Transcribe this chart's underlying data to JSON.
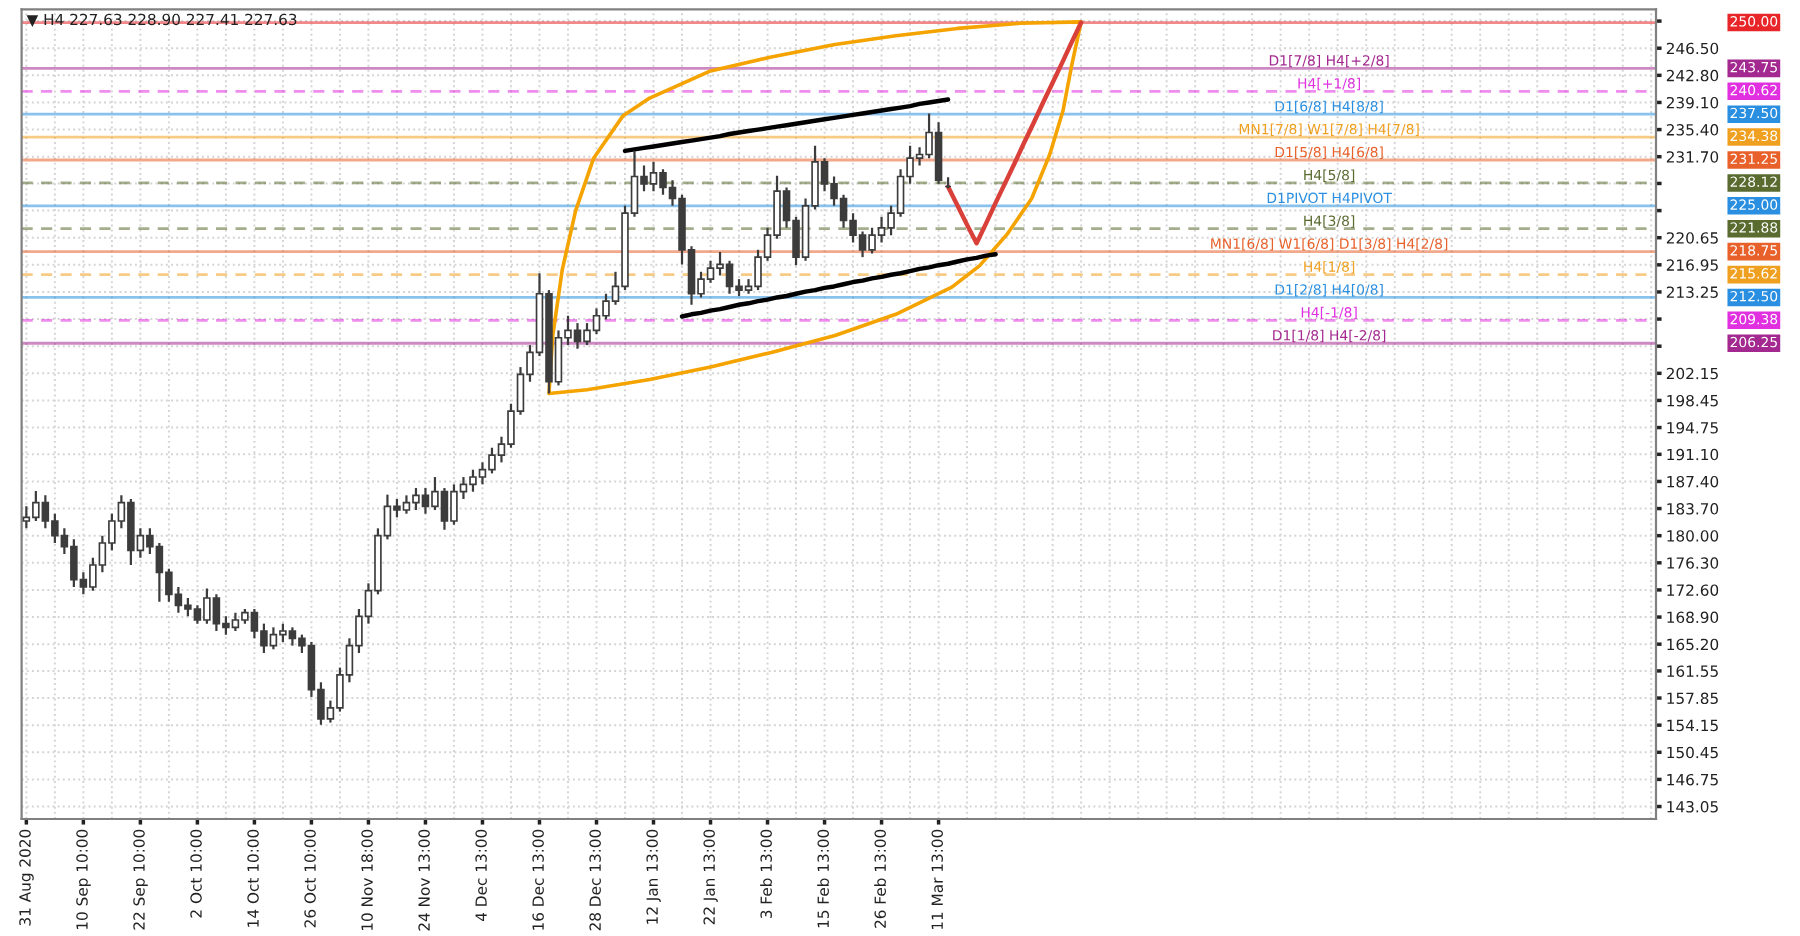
{
  "chart_data": {
    "type": "candlestick",
    "title": "▼ H4 227.63 228.90 227.41 227.63",
    "categories": [
      "31 Aug 2020",
      null,
      null,
      null,
      null,
      null,
      "10 Sep 10:00",
      null,
      null,
      null,
      null,
      null,
      "22 Sep 10:00",
      null,
      null,
      null,
      null,
      null,
      "2 Oct 10:00",
      null,
      null,
      null,
      null,
      null,
      "14 Oct 10:00",
      null,
      null,
      null,
      null,
      null,
      "26 Oct 10:00",
      null,
      null,
      null,
      null,
      null,
      "10 Nov 18:00",
      null,
      null,
      null,
      null,
      null,
      "24 Nov 13:00",
      null,
      null,
      null,
      null,
      null,
      "4 Dec 13:00",
      null,
      null,
      null,
      null,
      null,
      "16 Dec 13:00",
      null,
      null,
      null,
      null,
      null,
      "28 Dec 13:00",
      null,
      null,
      null,
      null,
      null,
      "12 Jan 13:00",
      null,
      null,
      null,
      null,
      null,
      "22 Jan 13:00",
      null,
      null,
      null,
      null,
      null,
      "3 Feb 13:00",
      null,
      null,
      null,
      null,
      null,
      "15 Feb 13:00",
      null,
      null,
      null,
      null,
      null,
      "26 Feb 13:00",
      null,
      null,
      null,
      null,
      null,
      "11 Mar 13:00",
      null,
      null,
      null,
      null,
      null,
      null,
      null,
      null,
      null,
      null,
      null,
      null,
      null,
      null,
      null,
      null,
      null,
      null,
      null,
      null,
      null,
      null,
      null,
      null,
      null,
      null,
      null,
      null,
      null,
      null,
      null,
      null,
      null,
      null,
      null,
      null,
      null,
      null,
      null,
      null,
      null,
      null,
      null,
      null,
      null,
      null,
      null,
      null,
      null,
      null,
      null,
      null,
      null,
      null,
      null,
      null,
      null,
      null,
      null,
      null,
      null,
      null,
      null,
      null,
      null,
      null,
      null,
      null,
      null,
      null,
      null,
      null,
      null,
      null,
      null
    ],
    "ylim": [
      141.35,
      251.8
    ],
    "grid": true,
    "yticks": [
      143.05,
      146.75,
      150.45,
      154.15,
      157.85,
      161.55,
      {
        "value": 165.2,
        "label": "165.20"
      },
      {
        "value": 168.9,
        "label": "168.90"
      },
      {
        "value": 172.6,
        "label": "172.60"
      },
      {
        "value": 176.3,
        "label": "176.30"
      },
      {
        "value": 180,
        "label": "180.00"
      },
      {
        "value": 183.7,
        "label": "183.70"
      },
      {
        "value": 187.4,
        "label": "187.40"
      },
      {
        "value": 191.1,
        "label": "191.10"
      },
      194.75,
      198.45,
      202.15,
      {
        "value": 205.85,
        "label": null
      },
      {
        "value": 209.55,
        "label": null
      },
      213.25,
      216.95,
      220.65,
      {
        "value": 224.35,
        "label": null
      },
      {
        "value": 228.05,
        "label": null
      },
      {
        "value": 231.7,
        "label": "231.70"
      },
      {
        "value": 235.4,
        "label": "235.40"
      },
      {
        "value": 239.1,
        "label": "239.10"
      },
      {
        "value": 242.8,
        "label": "242.80"
      },
      {
        "value": 246.5,
        "label": "246.50"
      },
      {
        "value": 250.2,
        "label": null
      }
    ],
    "series": [
      {
        "color": "#3c3c3c",
        "ohlc": [
          [
            182.0,
            184.0,
            181.0,
            182.5
          ],
          [
            182.5,
            186.1,
            182.0,
            184.5
          ],
          [
            184.5,
            185.5,
            181.0,
            182.0
          ],
          [
            182.0,
            183.0,
            179.0,
            180.0
          ],
          [
            180.0,
            181.0,
            177.5,
            178.5
          ],
          [
            178.5,
            179.5,
            173.0,
            174.0
          ],
          [
            174.0,
            175.0,
            172.0,
            173.0
          ],
          [
            173.0,
            177.0,
            172.5,
            176.0
          ],
          [
            176.0,
            180.0,
            175.0,
            179.0
          ],
          [
            179.0,
            183.0,
            178.0,
            182.0
          ],
          [
            182.0,
            185.5,
            181.0,
            184.5
          ],
          [
            184.5,
            185.0,
            176.0,
            178.0
          ],
          [
            178.0,
            181.0,
            177.0,
            180.0
          ],
          [
            180.0,
            181.0,
            177.5,
            178.5
          ],
          [
            178.5,
            179.0,
            171.0,
            175.0
          ],
          [
            175.0,
            175.5,
            171.0,
            172.0
          ],
          [
            172.0,
            173.0,
            169.5,
            170.5
          ],
          [
            170.5,
            171.5,
            169.0,
            170.0
          ],
          [
            170.0,
            170.5,
            168.0,
            168.5
          ],
          [
            168.5,
            172.8,
            168.0,
            171.5
          ],
          [
            171.5,
            172.0,
            167.0,
            168.0
          ],
          [
            168.0,
            169.0,
            166.5,
            167.5
          ],
          [
            167.5,
            169.5,
            167.0,
            168.5
          ],
          [
            168.5,
            170.0,
            168.0,
            169.5
          ],
          [
            169.5,
            170.0,
            166.0,
            167.0
          ],
          [
            167.0,
            168.0,
            164.0,
            165.0
          ],
          [
            165.0,
            167.5,
            164.5,
            166.5
          ],
          [
            166.5,
            168.0,
            165.5,
            167.0
          ],
          [
            167.0,
            167.5,
            165.0,
            166.0
          ],
          [
            166.0,
            166.5,
            164.0,
            165.0
          ],
          [
            165.0,
            165.5,
            158.0,
            159.0
          ],
          [
            159.0,
            160.0,
            154.2,
            155.0
          ],
          [
            155.0,
            157.5,
            154.5,
            156.5
          ],
          [
            156.5,
            162.0,
            156.0,
            161.0
          ],
          [
            161.0,
            166.0,
            160.0,
            165.0
          ],
          [
            165.0,
            170.0,
            164.0,
            169.0
          ],
          [
            169.0,
            173.5,
            168.0,
            172.5
          ],
          [
            172.5,
            181.0,
            172.0,
            180.0
          ],
          [
            180.0,
            185.6,
            179.5,
            184.0
          ],
          [
            184.0,
            185.0,
            182.5,
            183.5
          ],
          [
            183.5,
            185.5,
            183.0,
            184.5
          ],
          [
            184.5,
            186.5,
            183.5,
            185.5
          ],
          [
            185.5,
            186.5,
            183.0,
            184.0
          ],
          [
            184.0,
            188.0,
            183.5,
            186.0
          ],
          [
            186.0,
            186.5,
            180.8,
            182.0
          ],
          [
            182.0,
            187.0,
            181.5,
            186.0
          ],
          [
            186.0,
            188.0,
            185.0,
            187.0
          ],
          [
            187.0,
            189.0,
            186.0,
            188.0
          ],
          [
            188.0,
            190.0,
            187.0,
            189.0
          ],
          [
            189.0,
            192.0,
            188.5,
            191.0
          ],
          [
            191.0,
            193.5,
            190.0,
            192.5
          ],
          [
            192.5,
            198.0,
            192.0,
            197.0
          ],
          [
            197.0,
            203.0,
            196.5,
            202.0
          ],
          [
            202.0,
            206.0,
            201.0,
            205.0
          ],
          [
            205.0,
            215.8,
            204.5,
            213.0
          ],
          [
            213.0,
            213.5,
            199.4,
            201.0
          ],
          [
            201.0,
            208.0,
            200.5,
            207.0
          ],
          [
            207.0,
            210.0,
            206.0,
            208.0
          ],
          [
            208.0,
            209.0,
            205.5,
            206.5
          ],
          [
            206.5,
            209.0,
            206.0,
            208.0
          ],
          [
            208.0,
            211.0,
            207.5,
            210.0
          ],
          [
            210.0,
            213.0,
            209.5,
            212.0
          ],
          [
            212.0,
            216.0,
            211.5,
            214.0
          ],
          [
            214.0,
            225.0,
            213.5,
            224.0
          ],
          [
            224.0,
            232.5,
            223.5,
            229.0
          ],
          [
            229.0,
            230.5,
            227.0,
            228.0
          ],
          [
            228.0,
            231.0,
            227.0,
            229.5
          ],
          [
            229.5,
            230.0,
            226.5,
            227.5
          ],
          [
            227.5,
            228.5,
            225.0,
            226.0
          ],
          [
            226.0,
            226.5,
            217.0,
            219.0
          ],
          [
            219.0,
            219.5,
            211.5,
            213.0
          ],
          [
            213.0,
            216.0,
            212.5,
            215.0
          ],
          [
            215.0,
            217.5,
            214.5,
            216.5
          ],
          [
            216.5,
            218.7,
            215.5,
            217.0
          ],
          [
            217.0,
            217.5,
            213.0,
            214.0
          ],
          [
            214.0,
            215.0,
            212.7,
            213.5
          ],
          [
            213.5,
            215.0,
            213.0,
            214.0
          ],
          [
            214.0,
            219.0,
            213.5,
            218.0
          ],
          [
            218.0,
            222.0,
            217.5,
            221.0
          ],
          [
            221.0,
            229.1,
            220.5,
            227.0
          ],
          [
            227.0,
            227.5,
            222.0,
            223.0
          ],
          [
            223.0,
            223.5,
            216.9,
            218.0
          ],
          [
            218.0,
            226.0,
            217.5,
            225.0
          ],
          [
            225.0,
            233.2,
            224.5,
            231.0
          ],
          [
            231.0,
            231.5,
            227.0,
            228.0
          ],
          [
            228.0,
            229.0,
            225.0,
            226.0
          ],
          [
            226.0,
            226.5,
            222.0,
            223.0
          ],
          [
            223.0,
            224.0,
            220.0,
            221.0
          ],
          [
            221.0,
            221.5,
            218.0,
            219.0
          ],
          [
            219.0,
            222.0,
            218.5,
            221.0
          ],
          [
            221.0,
            223.5,
            220.0,
            222.0
          ],
          [
            222.0,
            225.0,
            221.0,
            224.0
          ],
          [
            224.0,
            230.0,
            223.5,
            229.0
          ],
          [
            229.0,
            233.2,
            228.0,
            231.5
          ],
          [
            231.5,
            233.0,
            230.5,
            232.0
          ],
          [
            232.0,
            237.6,
            231.5,
            235.0
          ],
          [
            235.0,
            236.4,
            228.0,
            228.5
          ],
          [
            227.63,
            228.9,
            227.41,
            227.63
          ],
          null,
          null,
          null,
          null,
          null,
          null,
          null,
          null,
          null,
          null,
          null,
          null,
          null,
          null,
          null,
          null,
          null,
          null,
          null,
          null,
          null,
          null,
          null,
          null,
          null,
          null,
          null,
          null,
          null,
          null,
          null,
          null,
          null,
          null,
          null,
          null,
          null,
          null,
          null,
          null,
          null,
          null,
          null,
          null,
          null,
          null,
          null,
          null,
          null,
          null,
          null,
          null,
          null,
          null,
          null,
          null,
          null,
          null,
          null,
          null,
          null,
          null,
          null,
          null,
          null,
          null,
          null,
          null,
          null,
          null,
          null,
          null,
          null,
          null
        ]
      },
      {
        "type": "line",
        "color": "#000000",
        "values": [
          null,
          null,
          null,
          null,
          null,
          null,
          null,
          null,
          null,
          null,
          null,
          null,
          null,
          null,
          null,
          null,
          null,
          null,
          null,
          null,
          null,
          null,
          null,
          null,
          null,
          null,
          null,
          null,
          null,
          null,
          null,
          null,
          null,
          null,
          null,
          null,
          null,
          null,
          null,
          null,
          null,
          null,
          null,
          null,
          null,
          null,
          null,
          null,
          null,
          null,
          null,
          null,
          null,
          null,
          null,
          null,
          null,
          null,
          null,
          null,
          null,
          null,
          null,
          232.5,
          232.7,
          232.9,
          233.1,
          233.3,
          233.5,
          233.7,
          233.9,
          234.1,
          234.3,
          234.5,
          234.8,
          235.0,
          235.2,
          235.4,
          235.6,
          235.8,
          236.0,
          236.2,
          236.4,
          236.6,
          236.8,
          237.0,
          237.2,
          237.4,
          237.6,
          237.8,
          238.0,
          238.2,
          238.4,
          238.6,
          238.9,
          239.1,
          239.3,
          239.5,
          null,
          null,
          null,
          null,
          null,
          null,
          null,
          null,
          null,
          null,
          null,
          null,
          null,
          null,
          null,
          null,
          null,
          null,
          null,
          null,
          null,
          null,
          null,
          null,
          null,
          null,
          null,
          null,
          null,
          null,
          null,
          null,
          null,
          null,
          null,
          null,
          null,
          null,
          null,
          null,
          null,
          null,
          null,
          null,
          null,
          null,
          null,
          null,
          null,
          null,
          null,
          null,
          null,
          null,
          null,
          null,
          null,
          null,
          null,
          null,
          null,
          null,
          null,
          null,
          null,
          null,
          null,
          null,
          null,
          null,
          null,
          null,
          null,
          null
        ]
      },
      {
        "type": "line",
        "color": "#000000",
        "values": [
          null,
          null,
          null,
          null,
          null,
          null,
          null,
          null,
          null,
          null,
          null,
          null,
          null,
          null,
          null,
          null,
          null,
          null,
          null,
          null,
          null,
          null,
          null,
          null,
          null,
          null,
          null,
          null,
          null,
          null,
          null,
          null,
          null,
          null,
          null,
          null,
          null,
          null,
          null,
          null,
          null,
          null,
          null,
          null,
          null,
          null,
          null,
          null,
          null,
          null,
          null,
          null,
          null,
          null,
          null,
          null,
          null,
          null,
          null,
          null,
          null,
          null,
          null,
          null,
          null,
          null,
          null,
          null,
          null,
          209.9,
          210.2,
          210.4,
          210.7,
          210.9,
          211.2,
          211.5,
          211.7,
          212.0,
          212.2,
          212.5,
          212.7,
          213.0,
          213.3,
          213.5,
          213.8,
          214.0,
          214.3,
          214.6,
          214.8,
          215.1,
          215.3,
          215.6,
          215.8,
          216.1,
          216.4,
          216.6,
          216.9,
          217.1,
          217.4,
          217.7,
          217.9,
          218.2,
          218.4,
          null,
          null,
          null,
          null,
          null,
          null,
          null,
          null,
          null,
          null,
          null,
          null,
          null,
          null,
          null,
          null,
          null,
          null,
          null,
          null,
          null,
          null,
          null,
          null,
          null,
          null,
          null,
          null,
          null,
          null,
          null,
          null,
          null,
          null,
          null,
          null,
          null,
          null,
          null,
          null,
          null,
          null,
          null,
          null,
          null,
          null,
          null,
          null,
          null,
          null,
          null,
          null,
          null,
          null,
          null,
          null,
          null,
          null,
          null,
          null,
          null,
          null,
          null,
          null,
          null,
          null,
          null,
          null,
          null
        ]
      },
      {
        "type": "line",
        "color": "#d9403a",
        "values": [
          null,
          null,
          null,
          null,
          null,
          null,
          null,
          null,
          null,
          null,
          null,
          null,
          null,
          null,
          null,
          null,
          null,
          null,
          null,
          null,
          null,
          null,
          null,
          null,
          null,
          null,
          null,
          null,
          null,
          null,
          null,
          null,
          null,
          null,
          null,
          null,
          null,
          null,
          null,
          null,
          null,
          null,
          null,
          null,
          null,
          null,
          null,
          null,
          null,
          null,
          null,
          null,
          null,
          null,
          null,
          null,
          null,
          null,
          null,
          null,
          null,
          null,
          null,
          null,
          null,
          null,
          null,
          null,
          null,
          null,
          null,
          null,
          null,
          null,
          null,
          null,
          null,
          null,
          null,
          null,
          null,
          null,
          null,
          null,
          null,
          null,
          null,
          null,
          null,
          null,
          null,
          null,
          null,
          null,
          null,
          null,
          null,
          227.6,
          225.0,
          222.4,
          219.9,
          222.6,
          225.4,
          228.1,
          230.8,
          233.6,
          236.3,
          239.1,
          241.8,
          244.5,
          247.3,
          250.0,
          null,
          null,
          null,
          null,
          null,
          null,
          null,
          null,
          null,
          null,
          null,
          null,
          null,
          null,
          null,
          null,
          null,
          null,
          null,
          null,
          null,
          null,
          null,
          null,
          null,
          null,
          null,
          null,
          null,
          null,
          null,
          null,
          null,
          null,
          null,
          null,
          null,
          null,
          null,
          null,
          null,
          null,
          null,
          null,
          null,
          null,
          null,
          null,
          null,
          null,
          null,
          null,
          null,
          null,
          null,
          null,
          null,
          null,
          null,
          null
        ]
      }
    ],
    "ref_lines": [
      {
        "axis": "y",
        "value": 250.0,
        "color": "#e8262a"
      },
      {
        "axis": "y",
        "value": 243.75,
        "label": "D1[7/8] H4[+2/8]",
        "color": "#a3288f"
      },
      {
        "axis": "y",
        "value": 240.62,
        "label": "H4[+1/8]",
        "color": "#e030e0",
        "line_style": "dashed"
      },
      {
        "axis": "y",
        "value": 237.5,
        "label": "D1[6/8] H4[8/8]",
        "color": "#2a8fe0"
      },
      {
        "axis": "y",
        "value": 234.38,
        "label": "MN1[7/8] W1[7/8] H4[7/8]",
        "color": "#f0a020"
      },
      {
        "axis": "y",
        "value": 231.25,
        "label": "D1[5/8] H4[6/8]",
        "color": "#e8602a"
      },
      {
        "axis": "y",
        "value": 228.12,
        "label": "H4[5/8]",
        "color": "#5a6b30",
        "line_style": "dashed"
      },
      {
        "axis": "y",
        "value": 225.0,
        "label": "D1PIVOT H4PIVOT",
        "color": "#2a8fe0"
      },
      {
        "axis": "y",
        "value": 221.88,
        "label": "H4[3/8]",
        "color": "#5a6b30",
        "line_style": "dashed"
      },
      {
        "axis": "y",
        "value": 218.75,
        "label": "MN1[6/8] W1[6/8] D1[3/8] H4[2/8]",
        "color": "#e8602a"
      },
      {
        "axis": "y",
        "value": 215.62,
        "label": "H4[1/8]",
        "color": "#f0a020",
        "line_style": "dashed"
      },
      {
        "axis": "y",
        "value": 212.5,
        "label": "D1[2/8] H4[0/8]",
        "color": "#2a8fe0"
      },
      {
        "axis": "y",
        "value": 209.38,
        "label": "H4[-1/8]",
        "color": "#e030e0",
        "line_style": "dashed"
      },
      {
        "axis": "y",
        "value": 206.25,
        "label": "D1[1/8] H4[-2/8]",
        "color": "#a3288f"
      }
    ],
    "annotations": [
      "250.00",
      "243.75",
      "240.62",
      "237.50",
      "234.38",
      "231.25",
      "228.12",
      "225.00",
      "221.88",
      "218.75",
      "215.62",
      "212.50",
      "209.38",
      "206.25"
    ]
  }
}
